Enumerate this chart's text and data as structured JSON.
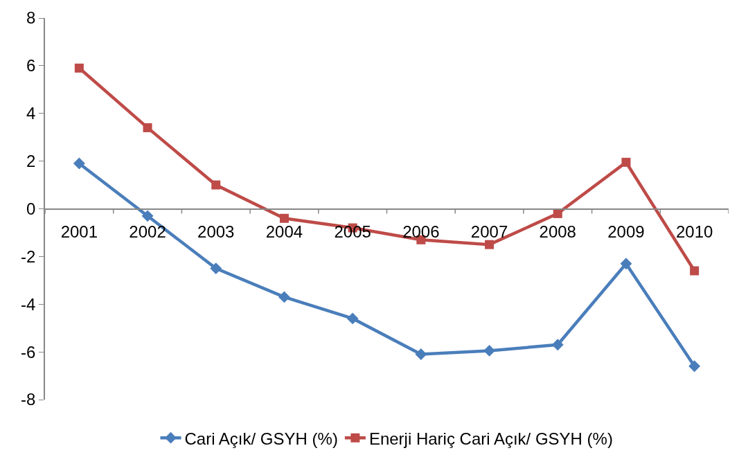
{
  "chart_data": {
    "type": "line",
    "categories": [
      "2001",
      "2002",
      "2003",
      "2004",
      "2005",
      "2006",
      "2007",
      "2008",
      "2009",
      "2010"
    ],
    "series": [
      {
        "name": "Cari Açık/ GSYH (%)",
        "color": "#4a7ebb",
        "marker": "diamond",
        "values": [
          1.9,
          -0.3,
          -2.5,
          -3.7,
          -4.6,
          -6.1,
          -5.95,
          -5.7,
          -2.3,
          -6.6
        ]
      },
      {
        "name": "Enerji Hariç Cari Açık/ GSYH (%)",
        "color": "#be4b48",
        "marker": "square",
        "values": [
          5.9,
          3.4,
          1.0,
          -0.4,
          -0.8,
          -1.3,
          -1.5,
          -0.2,
          1.95,
          -2.6
        ]
      }
    ],
    "ylim": [
      -8,
      8
    ],
    "yticks": [
      -8,
      -6,
      -4,
      -2,
      0,
      2,
      4,
      6,
      8
    ],
    "legend": "bottom",
    "line_style": "solid"
  }
}
